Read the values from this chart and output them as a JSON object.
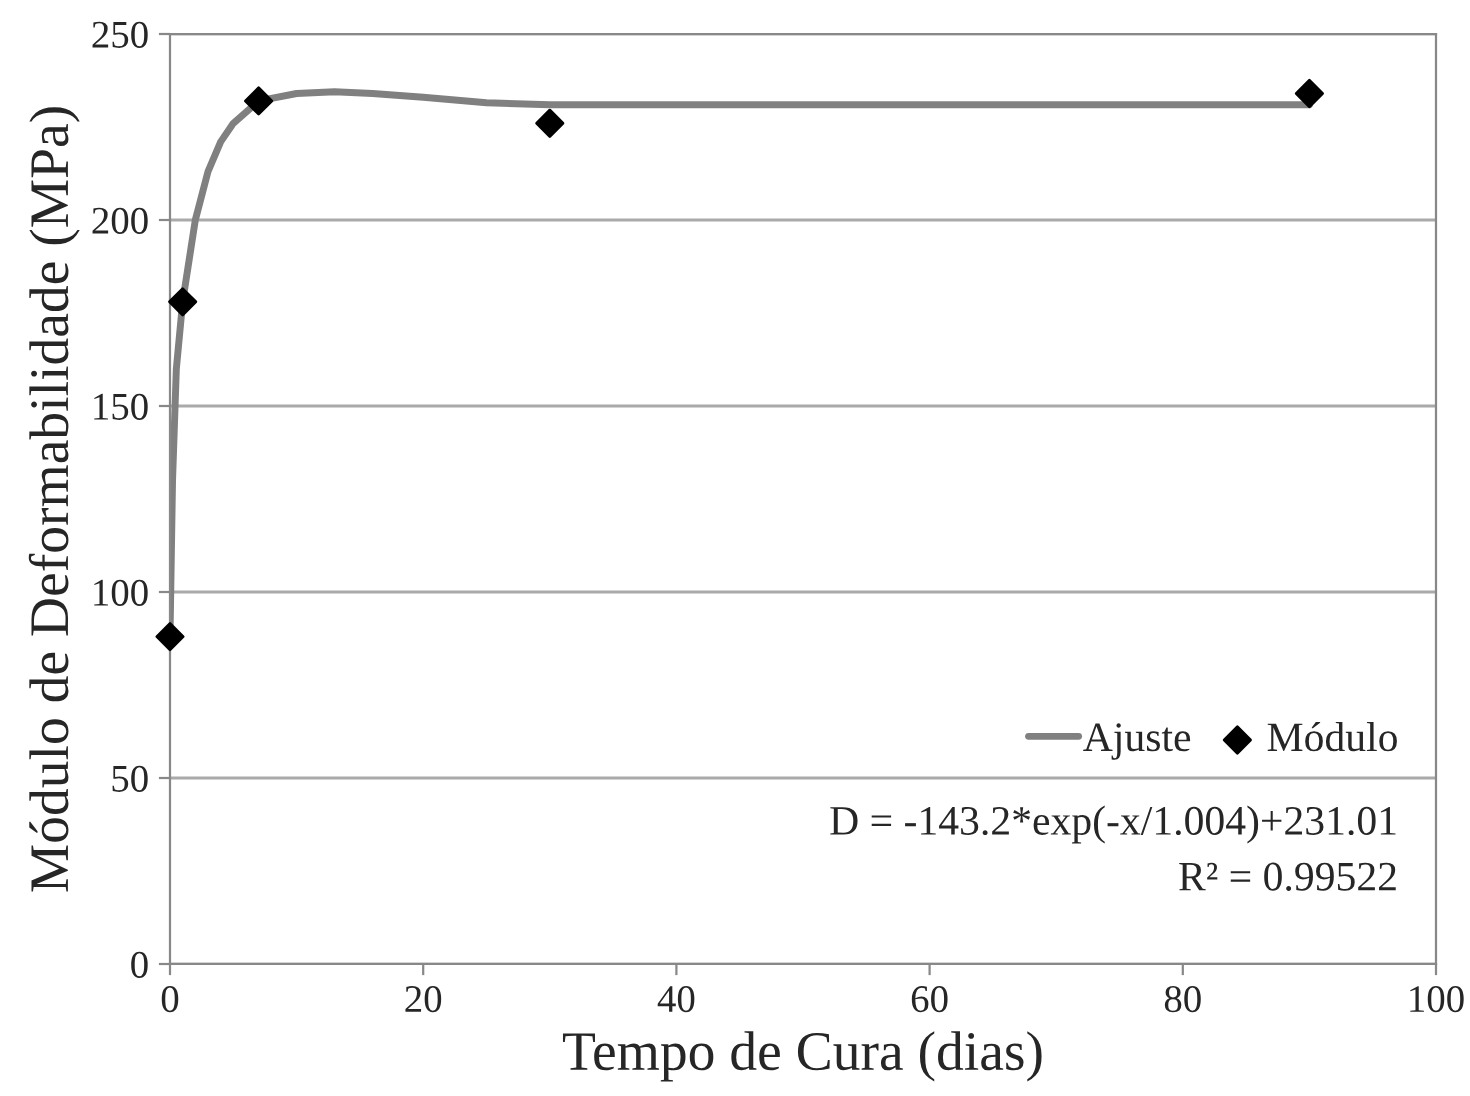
{
  "chart_data": {
    "type": "scatter",
    "xlabel": "Tempo de Cura (dias)",
    "ylabel": "Módulo de Deformabilidade (MPa)",
    "xlim": [
      0,
      100
    ],
    "xticks": [
      0,
      20,
      40,
      60,
      80,
      100
    ],
    "ylim": [
      0,
      250
    ],
    "yticks": [
      0,
      50,
      100,
      150,
      200,
      250
    ],
    "grid": "y",
    "legend": "right",
    "series": [
      {
        "name": "Ajuste",
        "type": "line",
        "color": "#808080",
        "marker": "none",
        "line_style": "solid",
        "x": [
          0,
          0.2,
          0.5,
          1,
          2,
          3,
          4,
          5,
          7,
          10,
          13,
          16,
          20,
          25,
          30,
          40,
          60,
          90
        ],
        "values": [
          88,
          130,
          160,
          178,
          200,
          213,
          221,
          226,
          232,
          234,
          234.5,
          234,
          233,
          231.5,
          231,
          231,
          231,
          231
        ]
      },
      {
        "name": "Módulo",
        "color": "#000000",
        "marker": "diamond",
        "x": [
          0,
          1,
          7,
          30,
          90
        ],
        "values": [
          88,
          178,
          232,
          226,
          234
        ]
      }
    ],
    "annotations": [
      "D = -143.2*exp(-x/1.004)+231.01",
      "R² = 0.99522"
    ]
  }
}
